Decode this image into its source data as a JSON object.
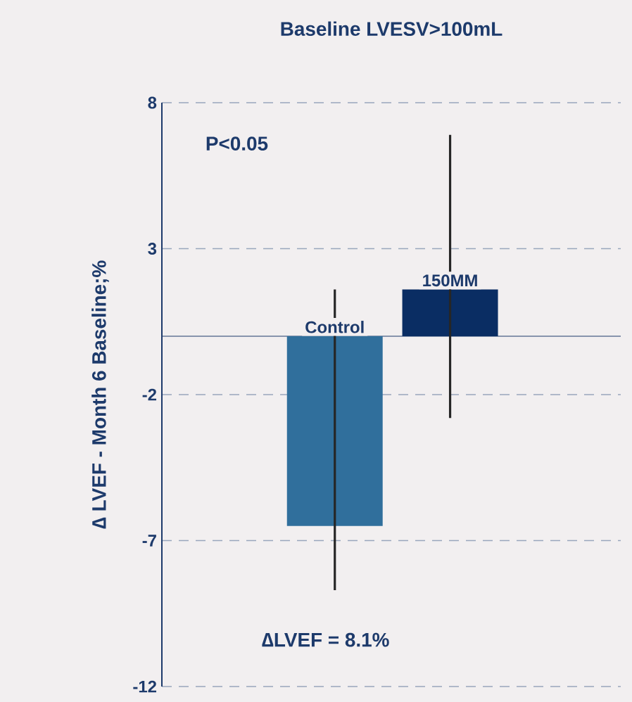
{
  "chart_data": {
    "type": "bar",
    "title": "Baseline LVESV>100mL",
    "ylabel": "∆  LVEF - Month 6 Baseline;%",
    "categories": [
      "Control",
      "150MM"
    ],
    "values": [
      -6.5,
      1.6
    ],
    "colors": [
      "#306f9c",
      "#0a2d63"
    ],
    "errors": [
      [
        -8.7,
        1.6
      ],
      [
        -2.8,
        6.9
      ]
    ],
    "ylim": [
      -12,
      8
    ],
    "yticks": [
      -12,
      -7,
      -2,
      3,
      8
    ],
    "grid": "y",
    "ref_lines": [
      {
        "axis": "y",
        "value": 0,
        "color": "#1d3a6b"
      }
    ],
    "annotations": [
      "P<0.05",
      "∆LVEF = 8.1%"
    ]
  }
}
